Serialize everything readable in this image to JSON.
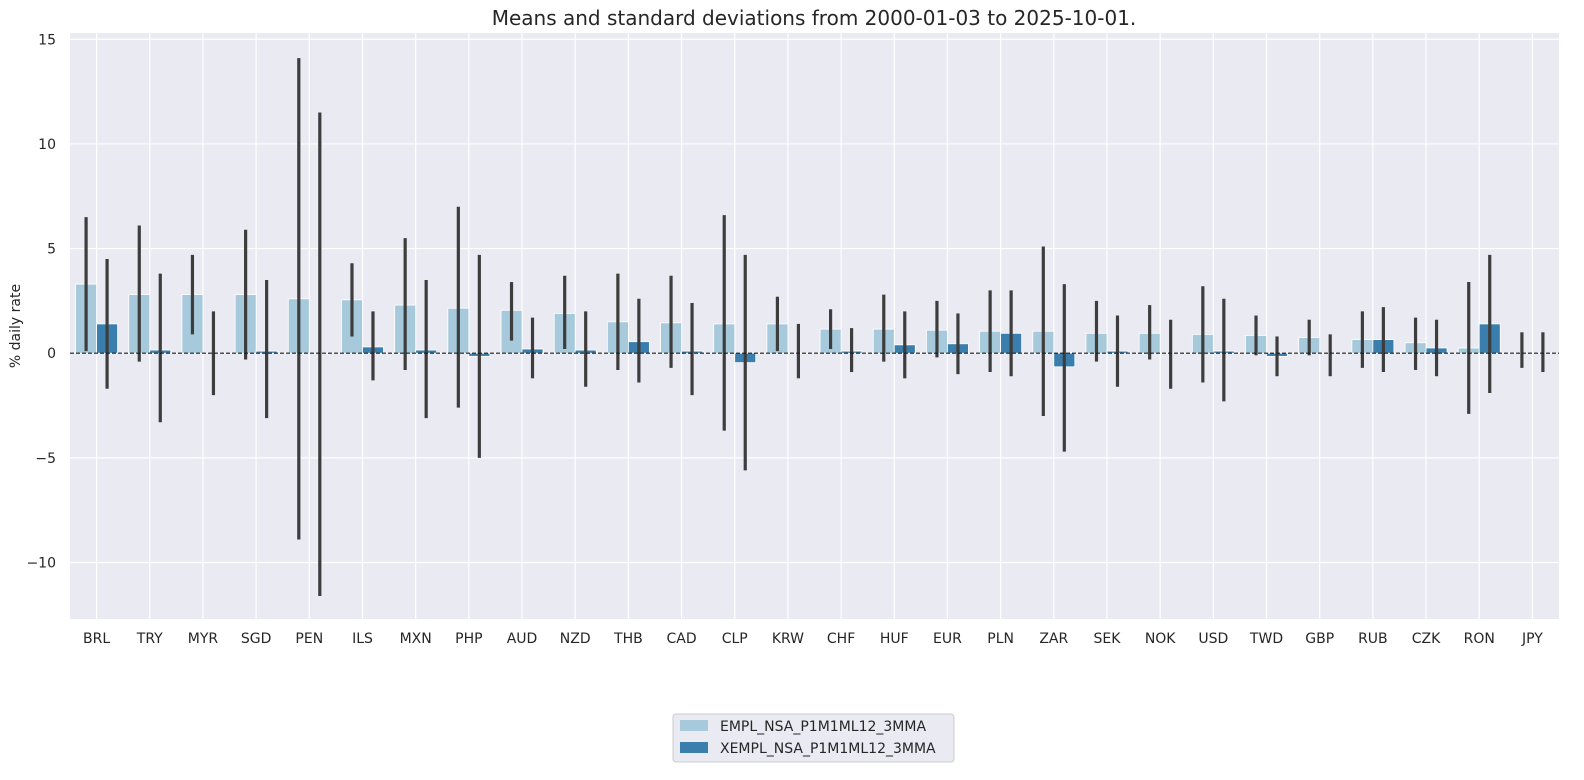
{
  "chart_data": {
    "type": "bar",
    "title": "Means and standard deviations from 2000-01-03 to 2025-10-01.",
    "xlabel": "",
    "ylabel": "% daily rate",
    "ylim": [
      -12.7,
      15.3
    ],
    "yticks": [
      -10,
      -5,
      0,
      5,
      10,
      15
    ],
    "ytick_labels": [
      "−10",
      "−5",
      "0",
      "5",
      "10",
      "15"
    ],
    "grid": true,
    "zero_line": true,
    "legend_position": "bottom-center",
    "categories": [
      "BRL",
      "TRY",
      "MYR",
      "SGD",
      "PEN",
      "ILS",
      "MXN",
      "PHP",
      "AUD",
      "NZD",
      "THB",
      "CAD",
      "CLP",
      "KRW",
      "CHF",
      "HUF",
      "EUR",
      "PLN",
      "ZAR",
      "SEK",
      "NOK",
      "USD",
      "TWD",
      "GBP",
      "RUB",
      "CZK",
      "RON",
      "JPY"
    ],
    "series": [
      {
        "name": "EMPL_NSA_P1M1ML12_3MMA",
        "color": "#a6cadb",
        "values": [
          3.3,
          2.8,
          2.8,
          2.8,
          2.6,
          2.55,
          2.3,
          2.15,
          2.05,
          1.9,
          1.5,
          1.45,
          1.4,
          1.4,
          1.15,
          1.15,
          1.1,
          1.05,
          1.05,
          0.95,
          0.95,
          0.9,
          0.85,
          0.75,
          0.65,
          0.5,
          0.25,
          0.0
        ],
        "err_low": [
          0.1,
          -0.4,
          0.9,
          -0.3,
          -8.9,
          0.8,
          -0.8,
          -2.6,
          0.6,
          0.2,
          -0.8,
          -0.7,
          -3.7,
          0.1,
          0.2,
          -0.4,
          -0.2,
          -0.9,
          -3.0,
          -0.4,
          -0.3,
          -1.4,
          -0.1,
          -0.1,
          -0.7,
          -0.8,
          -2.9,
          -0.7
        ],
        "err_high": [
          6.5,
          6.1,
          4.7,
          5.9,
          14.1,
          4.3,
          5.5,
          7.0,
          3.4,
          3.7,
          3.8,
          3.7,
          6.6,
          2.7,
          2.1,
          2.8,
          2.5,
          3.0,
          5.1,
          2.5,
          2.3,
          3.2,
          1.8,
          1.6,
          2.0,
          1.7,
          3.4,
          1.0
        ]
      },
      {
        "name": "XEMPL_NSA_P1M1ML12_3MMA",
        "color": "#3a7ead",
        "values": [
          1.4,
          0.15,
          0.0,
          0.1,
          0.0,
          0.3,
          0.15,
          -0.15,
          0.2,
          0.15,
          0.55,
          0.1,
          -0.45,
          0.0,
          0.1,
          0.4,
          0.45,
          0.95,
          -0.65,
          0.1,
          0.0,
          0.1,
          -0.15,
          0.0,
          0.65,
          0.25,
          1.4,
          0.0
        ],
        "err_low": [
          -1.7,
          -3.3,
          -2.0,
          -3.1,
          -11.6,
          -1.3,
          -3.1,
          -5.0,
          -1.2,
          -1.6,
          -1.4,
          -2.0,
          -5.6,
          -1.2,
          -0.9,
          -1.2,
          -1.0,
          -1.1,
          -4.7,
          -1.6,
          -1.7,
          -2.3,
          -1.1,
          -1.1,
          -0.9,
          -1.1,
          -1.9,
          -0.9
        ],
        "err_high": [
          4.5,
          3.8,
          2.0,
          3.5,
          11.5,
          2.0,
          3.5,
          4.7,
          1.7,
          2.0,
          2.6,
          2.4,
          4.7,
          1.4,
          1.2,
          2.0,
          1.9,
          3.0,
          3.3,
          1.8,
          1.6,
          2.6,
          0.8,
          0.9,
          2.2,
          1.6,
          4.7,
          1.0
        ]
      }
    ]
  }
}
